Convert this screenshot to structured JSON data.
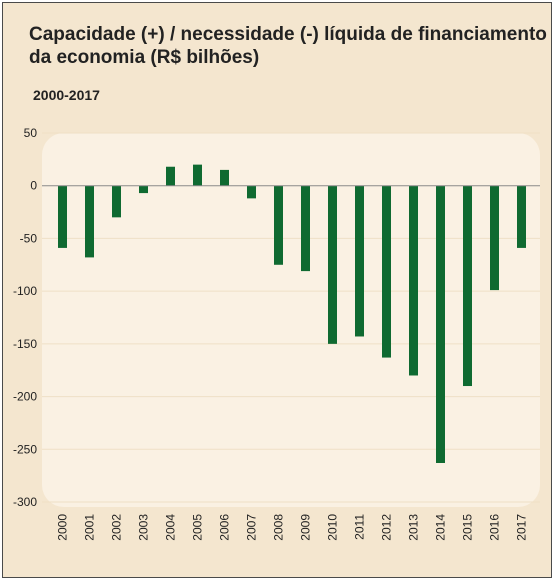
{
  "chart_data": {
    "type": "bar",
    "title": "Capacidade (+) / necessidade (-) líquida de financiamento da economia (R$ bilhões)",
    "subtitle": "2000-2017",
    "categories": [
      "2000",
      "2001",
      "2002",
      "2003",
      "2004",
      "2005",
      "2006",
      "2007",
      "2008",
      "2009",
      "2010",
      "2011",
      "2012",
      "2013",
      "2014",
      "2015",
      "2016",
      "2017"
    ],
    "values": [
      -59,
      -68,
      -30,
      -7,
      18,
      20,
      15,
      -12,
      -75,
      -81,
      -150,
      -143,
      -163,
      -180,
      -263,
      -190,
      -99,
      -59
    ],
    "ylim": [
      -300,
      50
    ],
    "yticks": [
      50,
      0,
      -50,
      -100,
      -150,
      -200,
      -250,
      -300
    ],
    "xlabel": "",
    "ylabel": "",
    "grid": true,
    "colors": {
      "bar": "#0f6a31",
      "background": "#f4e6cf",
      "plot_background": "#faf1e3",
      "gridline": "#efe0c6"
    }
  }
}
